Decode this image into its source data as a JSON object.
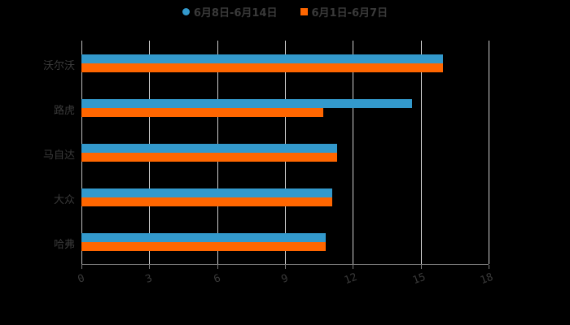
{
  "legend": {
    "series": [
      {
        "name": "6月8日-6月14日",
        "color": "#3399cc",
        "shape": "circle"
      },
      {
        "name": "6月1日-6月7日",
        "color": "#ff6600",
        "shape": "square"
      }
    ]
  },
  "colors": {
    "background": "#000000",
    "series1": "#3399cc",
    "series2": "#ff6600",
    "text": "#3a3a3a",
    "grid": "#cfcfcf"
  },
  "chart_data": {
    "type": "bar",
    "orientation": "horizontal",
    "title": "",
    "xlabel": "",
    "ylabel": "",
    "categories": [
      "沃尔沃",
      "路虎",
      "马自达",
      "大众",
      "哈弗"
    ],
    "series": [
      {
        "name": "6月8日-6月14日",
        "values": [
          16.0,
          14.6,
          11.3,
          11.1,
          10.8
        ]
      },
      {
        "name": "6月1日-6月7日",
        "values": [
          16.0,
          10.7,
          11.3,
          11.1,
          10.8
        ]
      }
    ],
    "xlim": [
      0,
      18
    ],
    "xticks": [
      "0",
      "3",
      "6",
      "9",
      "12",
      "15",
      "18"
    ],
    "grid": true,
    "legend_position": "top"
  }
}
